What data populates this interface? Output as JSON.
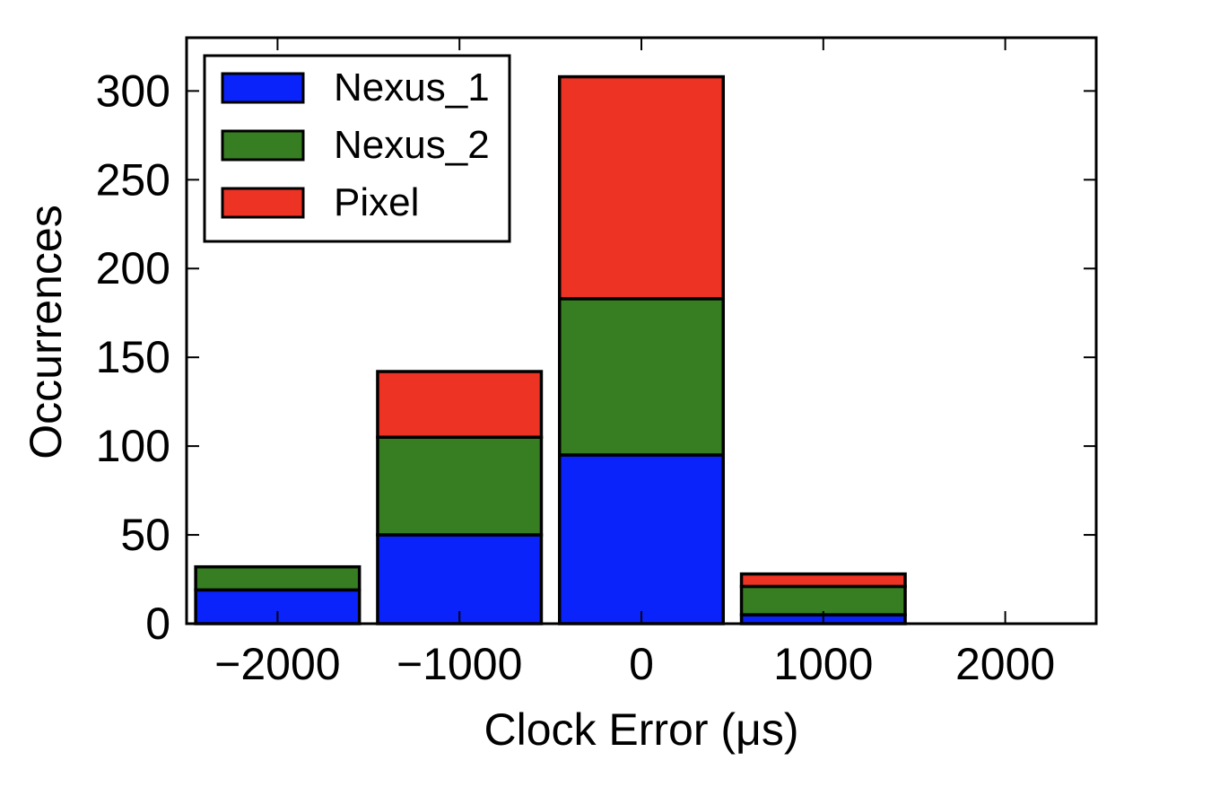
{
  "chart_data": {
    "type": "bar",
    "stacked": true,
    "title": "",
    "xlabel": "Clock Error (μs)",
    "ylabel": "Occurrences",
    "x": [
      -2000,
      -1000,
      0,
      1000,
      2000
    ],
    "bin_width": 900,
    "xlim": [
      -2500,
      2500
    ],
    "ylim": [
      0,
      330
    ],
    "x_ticks": [
      -2000,
      -1000,
      0,
      1000,
      2000
    ],
    "x_tick_labels": [
      "−2000",
      "−1000",
      "0",
      "1000",
      "2000"
    ],
    "y_ticks": [
      0,
      50,
      100,
      150,
      200,
      250,
      300
    ],
    "y_tick_labels": [
      "0",
      "50",
      "100",
      "150",
      "200",
      "250",
      "300"
    ],
    "grid": false,
    "legend_position": "top-left",
    "series": [
      {
        "name": "Nexus_1",
        "color": "#0a23fa",
        "values": [
          19,
          50,
          95,
          5,
          0
        ]
      },
      {
        "name": "Nexus_2",
        "color": "#377e22",
        "values": [
          13,
          55,
          88,
          16,
          0
        ]
      },
      {
        "name": "Pixel",
        "color": "#ec3324",
        "values": [
          0,
          37,
          125,
          7,
          0
        ]
      }
    ]
  }
}
